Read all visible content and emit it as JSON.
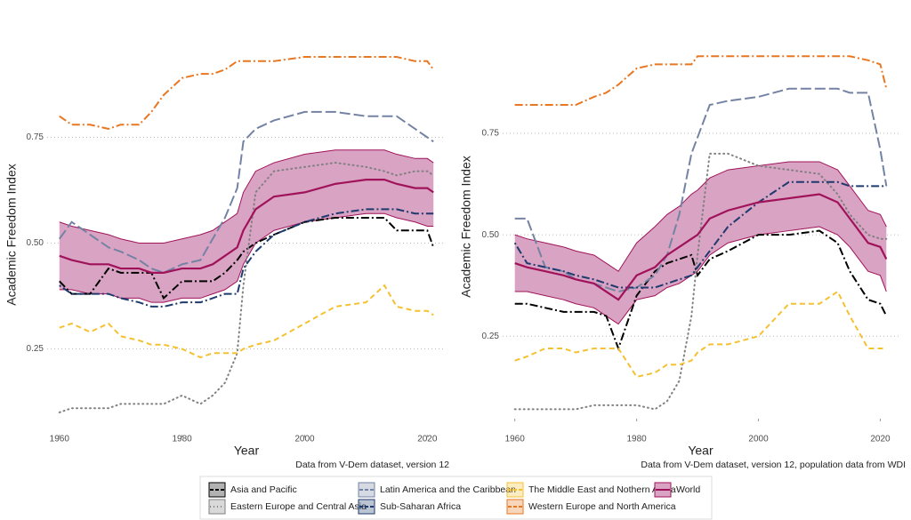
{
  "chart_data": [
    {
      "type": "line",
      "xlabel": "Year",
      "ylabel": "Academic Freedom Index",
      "caption": "Data from V-Dem dataset, version 12",
      "x": [
        1960,
        1962,
        1965,
        1968,
        1970,
        1973,
        1975,
        1977,
        1980,
        1983,
        1985,
        1987,
        1989,
        1990,
        1992,
        1995,
        2000,
        2005,
        2010,
        2013,
        2015,
        2018,
        2020,
        2021
      ],
      "xlim": [
        1958,
        2023
      ],
      "xticks": [
        1960,
        1980,
        2000,
        2020
      ],
      "ylim": [
        0.06,
        0.98
      ],
      "yticks": [
        0.25,
        {
          "value": 0.5,
          "label": "0.50"
        },
        0.75
      ],
      "grid": true,
      "series": [
        {
          "name": "Asia and Pacific",
          "color": "#000000",
          "dash": "9,3,2,3",
          "values": [
            0.41,
            0.38,
            0.38,
            0.44,
            0.43,
            0.43,
            0.43,
            0.37,
            0.41,
            0.41,
            0.41,
            0.43,
            0.46,
            0.48,
            0.5,
            0.52,
            0.55,
            0.56,
            0.56,
            0.56,
            0.53,
            0.53,
            0.53,
            0.49
          ]
        },
        {
          "name": "Eastern Europe and Central Asia",
          "color": "#808080",
          "dash": "1,4",
          "values": [
            0.1,
            0.11,
            0.11,
            0.11,
            0.12,
            0.12,
            0.12,
            0.12,
            0.14,
            0.12,
            0.14,
            0.17,
            0.24,
            0.4,
            0.62,
            0.67,
            0.68,
            0.69,
            0.68,
            0.67,
            0.66,
            0.67,
            0.67,
            0.66
          ]
        },
        {
          "name": "Latin America and the Caribbean",
          "color": "#7483a3",
          "dash": "12,4",
          "values": [
            0.51,
            0.55,
            0.52,
            0.49,
            0.48,
            0.46,
            0.44,
            0.43,
            0.45,
            0.46,
            0.51,
            0.56,
            0.63,
            0.74,
            0.77,
            0.79,
            0.81,
            0.81,
            0.8,
            0.8,
            0.8,
            0.77,
            0.75,
            0.74
          ]
        },
        {
          "name": "Sub-Saharan Africa",
          "color": "#1f3a6e",
          "dash": "2,3,9,3",
          "values": [
            0.4,
            0.38,
            0.38,
            0.38,
            0.37,
            0.36,
            0.35,
            0.35,
            0.36,
            0.36,
            0.37,
            0.38,
            0.38,
            0.44,
            0.48,
            0.52,
            0.55,
            0.57,
            0.58,
            0.58,
            0.58,
            0.57,
            0.57,
            0.57
          ]
        },
        {
          "name": "The Middle East and Nothern Africa",
          "color": "#f5c131",
          "dash": "6,4",
          "values": [
            0.3,
            0.31,
            0.29,
            0.31,
            0.28,
            0.27,
            0.26,
            0.26,
            0.25,
            0.23,
            0.24,
            0.24,
            0.24,
            0.25,
            0.26,
            0.27,
            0.31,
            0.35,
            0.36,
            0.4,
            0.35,
            0.34,
            0.34,
            0.33
          ]
        },
        {
          "name": "Western Europe and North America",
          "color": "#e87722",
          "dash": "9,3,2,3",
          "values": [
            0.8,
            0.78,
            0.78,
            0.77,
            0.78,
            0.78,
            0.81,
            0.85,
            0.89,
            0.9,
            0.9,
            0.91,
            0.93,
            0.93,
            0.93,
            0.93,
            0.94,
            0.94,
            0.94,
            0.94,
            0.94,
            0.93,
            0.93,
            0.91
          ]
        },
        {
          "name": "World",
          "color": "#a0135a",
          "band_color": "#d9a3c3",
          "dash": "",
          "values": [
            0.47,
            0.46,
            0.45,
            0.45,
            0.44,
            0.44,
            0.43,
            0.43,
            0.44,
            0.44,
            0.45,
            0.47,
            0.49,
            0.53,
            0.58,
            0.61,
            0.62,
            0.64,
            0.65,
            0.65,
            0.64,
            0.63,
            0.63,
            0.62
          ],
          "upper": [
            0.55,
            0.54,
            0.53,
            0.52,
            0.51,
            0.5,
            0.5,
            0.5,
            0.51,
            0.52,
            0.53,
            0.55,
            0.57,
            0.62,
            0.67,
            0.69,
            0.71,
            0.72,
            0.72,
            0.72,
            0.71,
            0.7,
            0.7,
            0.69
          ],
          "lower": [
            0.39,
            0.39,
            0.38,
            0.38,
            0.37,
            0.37,
            0.36,
            0.36,
            0.37,
            0.37,
            0.38,
            0.39,
            0.41,
            0.45,
            0.5,
            0.53,
            0.55,
            0.56,
            0.57,
            0.57,
            0.56,
            0.55,
            0.54,
            0.54
          ]
        }
      ]
    },
    {
      "type": "line",
      "xlabel": "Year",
      "ylabel": "Academic Freedom Index",
      "caption": "Data from V-Dem dataset, version 12, population data from WDI",
      "x": [
        1960,
        1962,
        1965,
        1968,
        1970,
        1973,
        1975,
        1977,
        1980,
        1983,
        1985,
        1987,
        1989,
        1990,
        1992,
        1995,
        2000,
        2005,
        2010,
        2013,
        2015,
        2018,
        2020,
        2021
      ],
      "xlim": [
        1958,
        2023
      ],
      "xticks": [
        1960,
        1980,
        2000,
        2020
      ],
      "ylim": [
        0.06,
        0.98
      ],
      "yticks": [
        0.25,
        {
          "value": 0.5,
          "label": "0.50"
        },
        0.75
      ],
      "grid": true,
      "series": [
        {
          "color": "#000000",
          "dash": "9,3,2,3",
          "values": [
            0.33,
            0.33,
            0.32,
            0.31,
            0.31,
            0.31,
            0.3,
            0.22,
            0.35,
            0.41,
            0.43,
            0.44,
            0.45,
            0.4,
            0.44,
            0.46,
            0.5,
            0.5,
            0.51,
            0.48,
            0.41,
            0.34,
            0.33,
            0.3
          ]
        },
        {
          "color": "#808080",
          "dash": "1,4",
          "values": [
            0.07,
            0.07,
            0.07,
            0.07,
            0.07,
            0.08,
            0.08,
            0.08,
            0.08,
            0.07,
            0.09,
            0.14,
            0.3,
            0.45,
            0.7,
            0.7,
            0.67,
            0.66,
            0.65,
            0.6,
            0.55,
            0.5,
            0.49,
            0.49
          ]
        },
        {
          "color": "#7483a3",
          "dash": "12,4",
          "values": [
            0.54,
            0.54,
            0.42,
            0.41,
            0.39,
            0.38,
            0.37,
            0.36,
            0.37,
            0.4,
            0.45,
            0.55,
            0.7,
            0.74,
            0.82,
            0.83,
            0.84,
            0.86,
            0.86,
            0.86,
            0.85,
            0.85,
            0.71,
            0.62
          ]
        },
        {
          "color": "#1f3a6e",
          "dash": "2,3,9,3",
          "values": [
            0.48,
            0.43,
            0.42,
            0.41,
            0.4,
            0.39,
            0.38,
            0.37,
            0.37,
            0.37,
            0.38,
            0.39,
            0.4,
            0.42,
            0.46,
            0.52,
            0.58,
            0.63,
            0.63,
            0.63,
            0.62,
            0.62,
            0.62,
            0.62
          ]
        },
        {
          "color": "#f5c131",
          "dash": "6,4",
          "values": [
            0.19,
            0.2,
            0.22,
            0.22,
            0.21,
            0.22,
            0.22,
            0.22,
            0.15,
            0.16,
            0.18,
            0.18,
            0.19,
            0.21,
            0.23,
            0.23,
            0.25,
            0.33,
            0.33,
            0.36,
            0.3,
            0.22,
            0.22,
            0.22
          ]
        },
        {
          "color": "#e87722",
          "dash": "9,3,2,3",
          "values": [
            0.82,
            0.82,
            0.82,
            0.82,
            0.82,
            0.84,
            0.85,
            0.87,
            0.91,
            0.92,
            0.92,
            0.92,
            0.92,
            0.94,
            0.94,
            0.94,
            0.94,
            0.94,
            0.94,
            0.94,
            0.94,
            0.93,
            0.92,
            0.86
          ]
        },
        {
          "color": "#a0135a",
          "band_color": "#d9a3c3",
          "dash": "",
          "values": [
            0.43,
            0.42,
            0.41,
            0.4,
            0.39,
            0.38,
            0.36,
            0.34,
            0.4,
            0.42,
            0.45,
            0.47,
            0.49,
            0.5,
            0.54,
            0.56,
            0.58,
            0.59,
            0.6,
            0.58,
            0.54,
            0.48,
            0.47,
            0.44
          ],
          "upper": [
            0.5,
            0.49,
            0.48,
            0.47,
            0.46,
            0.45,
            0.43,
            0.41,
            0.48,
            0.52,
            0.55,
            0.57,
            0.6,
            0.61,
            0.64,
            0.66,
            0.67,
            0.68,
            0.68,
            0.66,
            0.62,
            0.56,
            0.55,
            0.52
          ],
          "lower": [
            0.36,
            0.36,
            0.35,
            0.34,
            0.33,
            0.32,
            0.3,
            0.28,
            0.34,
            0.35,
            0.37,
            0.38,
            0.4,
            0.41,
            0.45,
            0.48,
            0.5,
            0.51,
            0.52,
            0.5,
            0.47,
            0.41,
            0.4,
            0.36
          ]
        }
      ]
    }
  ]
}
